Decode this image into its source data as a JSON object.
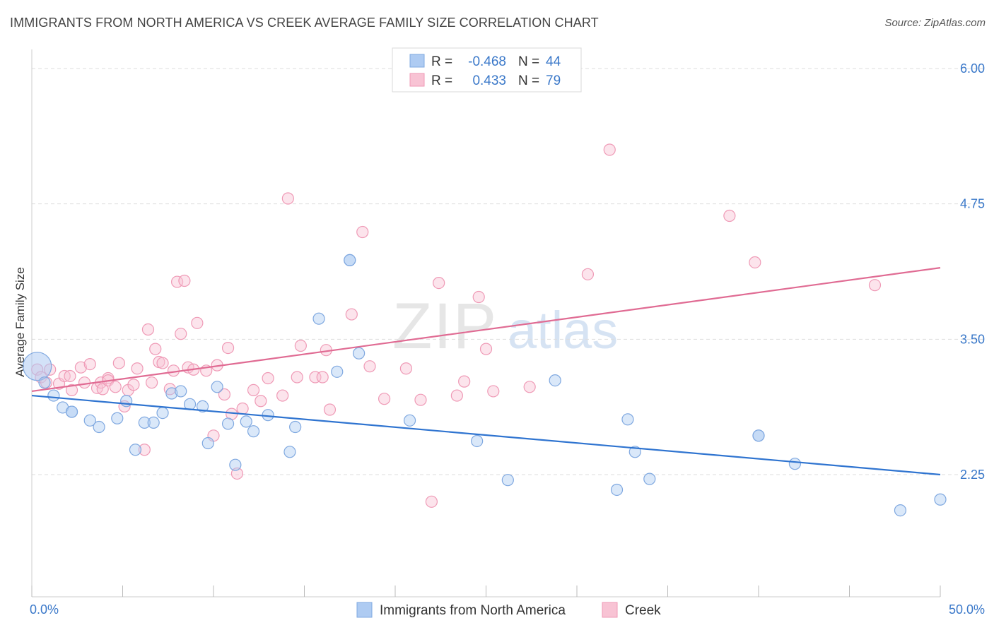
{
  "title": "IMMIGRANTS FROM NORTH AMERICA VS CREEK AVERAGE FAMILY SIZE CORRELATION CHART",
  "source": "Source: ZipAtlas.com",
  "watermark": {
    "part1": "ZIP",
    "part2": "atlas"
  },
  "colors": {
    "blue_fill": "#aecbf2",
    "blue_stroke": "#7fa8e0",
    "blue_line": "#2f74d0",
    "pink_fill": "#f8c3d4",
    "pink_stroke": "#ef9ab6",
    "pink_line": "#e06b93",
    "axis_text": "#3a78c9",
    "grid": "#dddddd",
    "stat_value": "#3a78c9"
  },
  "legend_stats": {
    "rows": [
      {
        "r_label": "R =",
        "r_value": "-0.468",
        "n_label": "N =",
        "n_value": "44",
        "series": "blue"
      },
      {
        "r_label": "R =",
        "r_value": "0.433",
        "n_label": "N =",
        "n_value": "79",
        "series": "pink"
      }
    ]
  },
  "chart_data": {
    "type": "scatter",
    "title": "IMMIGRANTS FROM NORTH AMERICA VS CREEK AVERAGE FAMILY SIZE CORRELATION CHART",
    "xlabel": "",
    "ylabel": "Average Family Size",
    "xlim": [
      0,
      50
    ],
    "ylim": [
      1.25,
      6.2
    ],
    "x_ticks_labels": [
      "0.0%",
      "50.0%"
    ],
    "y_ticks": [
      2.25,
      3.5,
      4.75,
      6.0
    ],
    "y_tick_labels": [
      "2.25",
      "3.50",
      "4.75",
      "6.00"
    ],
    "grid": true,
    "legend": "bottom-center",
    "series": [
      {
        "name": "Immigrants from North America",
        "color": "blue",
        "trend": {
          "x0": 0,
          "y0": 2.98,
          "x1": 50,
          "y1": 2.25
        },
        "points": [
          [
            0.3,
            3.25
          ],
          [
            0.7,
            3.1
          ],
          [
            1.2,
            2.98
          ],
          [
            1.7,
            2.87
          ],
          [
            2.2,
            2.83
          ],
          [
            2.2,
            2.83
          ],
          [
            3.2,
            2.75
          ],
          [
            3.7,
            2.69
          ],
          [
            4.7,
            2.77
          ],
          [
            5.2,
            2.93
          ],
          [
            5.7,
            2.48
          ],
          [
            6.2,
            2.73
          ],
          [
            6.7,
            2.73
          ],
          [
            7.2,
            2.82
          ],
          [
            7.7,
            3.0
          ],
          [
            8.2,
            3.02
          ],
          [
            8.7,
            2.9
          ],
          [
            9.4,
            2.88
          ],
          [
            9.7,
            2.54
          ],
          [
            10.2,
            3.06
          ],
          [
            10.8,
            2.72
          ],
          [
            11.2,
            2.34
          ],
          [
            11.8,
            2.74
          ],
          [
            12.2,
            2.65
          ],
          [
            13.0,
            2.8
          ],
          [
            14.2,
            2.46
          ],
          [
            14.5,
            2.69
          ],
          [
            15.8,
            3.69
          ],
          [
            16.8,
            3.2
          ],
          [
            17.5,
            4.23
          ],
          [
            17.5,
            4.23
          ],
          [
            18.0,
            3.37
          ],
          [
            20.8,
            2.75
          ],
          [
            24.5,
            2.56
          ],
          [
            26.2,
            2.2
          ],
          [
            28.8,
            3.12
          ],
          [
            32.2,
            2.11
          ],
          [
            32.8,
            2.76
          ],
          [
            33.2,
            2.46
          ],
          [
            34.0,
            2.21
          ],
          [
            40.0,
            2.61
          ],
          [
            40.0,
            2.61
          ],
          [
            42.0,
            2.35
          ],
          [
            47.8,
            1.92
          ],
          [
            50.0,
            2.02
          ]
        ]
      },
      {
        "name": "Creek",
        "color": "pink",
        "trend": {
          "x0": 0,
          "y0": 3.02,
          "x1": 50,
          "y1": 4.16
        },
        "points": [
          [
            0.3,
            3.22
          ],
          [
            0.5,
            3.15
          ],
          [
            0.8,
            3.1
          ],
          [
            1.0,
            3.22
          ],
          [
            1.5,
            3.09
          ],
          [
            1.8,
            3.16
          ],
          [
            2.1,
            3.16
          ],
          [
            2.2,
            3.03
          ],
          [
            2.7,
            3.24
          ],
          [
            2.9,
            3.1
          ],
          [
            3.2,
            3.27
          ],
          [
            3.6,
            3.05
          ],
          [
            3.8,
            3.1
          ],
          [
            3.9,
            3.04
          ],
          [
            4.2,
            3.14
          ],
          [
            4.2,
            3.12
          ],
          [
            4.6,
            3.06
          ],
          [
            4.8,
            3.28
          ],
          [
            5.1,
            2.88
          ],
          [
            5.3,
            3.03
          ],
          [
            5.6,
            3.08
          ],
          [
            5.8,
            3.23
          ],
          [
            6.2,
            2.48
          ],
          [
            6.4,
            3.59
          ],
          [
            6.6,
            3.1
          ],
          [
            6.8,
            3.41
          ],
          [
            7.0,
            3.29
          ],
          [
            7.2,
            3.28
          ],
          [
            7.6,
            3.04
          ],
          [
            7.8,
            3.21
          ],
          [
            8.0,
            4.03
          ],
          [
            8.2,
            3.55
          ],
          [
            8.4,
            4.04
          ],
          [
            8.6,
            3.24
          ],
          [
            8.9,
            3.22
          ],
          [
            9.1,
            3.65
          ],
          [
            9.6,
            3.21
          ],
          [
            10.0,
            2.61
          ],
          [
            10.2,
            3.26
          ],
          [
            10.6,
            2.99
          ],
          [
            10.8,
            3.42
          ],
          [
            11.0,
            2.81
          ],
          [
            11.3,
            2.26
          ],
          [
            11.6,
            2.86
          ],
          [
            12.2,
            3.03
          ],
          [
            12.6,
            2.93
          ],
          [
            13.0,
            3.14
          ],
          [
            13.8,
            2.98
          ],
          [
            14.1,
            4.8
          ],
          [
            14.6,
            3.15
          ],
          [
            14.8,
            3.44
          ],
          [
            15.6,
            3.15
          ],
          [
            16.0,
            3.15
          ],
          [
            16.2,
            3.4
          ],
          [
            16.4,
            2.85
          ],
          [
            17.6,
            3.73
          ],
          [
            18.2,
            4.49
          ],
          [
            18.6,
            3.25
          ],
          [
            19.4,
            2.95
          ],
          [
            20.6,
            3.23
          ],
          [
            21.4,
            2.94
          ],
          [
            22.0,
            2.0
          ],
          [
            22.4,
            4.02
          ],
          [
            23.4,
            2.98
          ],
          [
            23.8,
            3.11
          ],
          [
            24.6,
            3.89
          ],
          [
            25.0,
            3.41
          ],
          [
            25.4,
            3.02
          ],
          [
            27.4,
            3.06
          ],
          [
            30.6,
            4.1
          ],
          [
            31.8,
            5.25
          ],
          [
            38.4,
            4.64
          ],
          [
            39.8,
            4.21
          ],
          [
            46.4,
            4.0
          ]
        ]
      }
    ]
  }
}
